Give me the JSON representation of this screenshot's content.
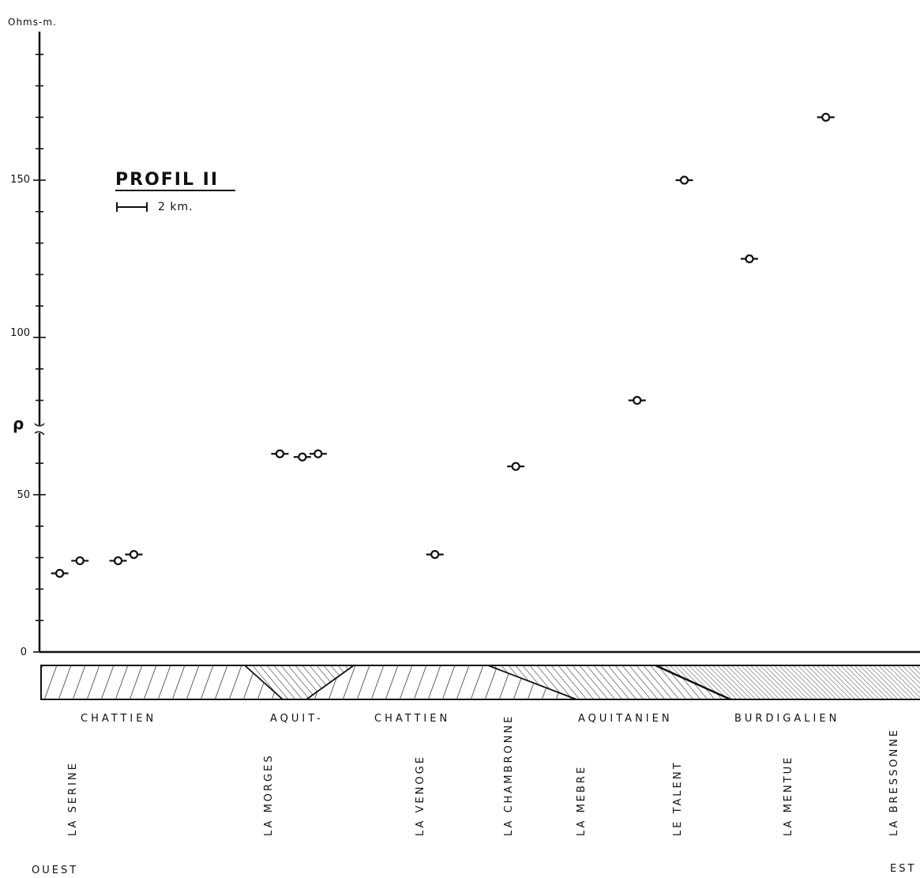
{
  "chart_data": {
    "type": "scatter",
    "title": "PROFIL II",
    "scale_label": "2 km.",
    "ylabel": "Ohms-m.",
    "ylabel_symbol": "ρ",
    "ylim": [
      0,
      190
    ],
    "y_ticks": [
      "0",
      "50",
      "100",
      "150"
    ],
    "grid": false,
    "series": [
      {
        "points": [
          {
            "x": 0.9,
            "y": 25
          },
          {
            "x": 1.8,
            "y": 29
          },
          {
            "x": 3.5,
            "y": 29
          },
          {
            "x": 4.2,
            "y": 31
          },
          {
            "x": 10.7,
            "y": 63
          },
          {
            "x": 11.7,
            "y": 62
          },
          {
            "x": 12.4,
            "y": 63
          },
          {
            "x": 17.6,
            "y": 31
          },
          {
            "x": 21.2,
            "y": 59
          },
          {
            "x": 26.6,
            "y": 80
          },
          {
            "x": 28.7,
            "y": 150
          },
          {
            "x": 31.6,
            "y": 125
          },
          {
            "x": 35.0,
            "y": 170
          }
        ]
      }
    ],
    "stratigraphy": [
      "CHATTIEN",
      "AQUIT-",
      "CHATTIEN",
      "AQUITANIEN",
      "BURDIGALIEN"
    ],
    "rivers": [
      "LA SERINE",
      "LA MORGES",
      "LA VENOGE",
      "LA CHAMBRONNE",
      "LA MEBRE",
      "LE TALENT",
      "LA MENTUE",
      "LA BRESSONNE"
    ],
    "direction_left": "OUEST",
    "direction_right": "EST"
  }
}
